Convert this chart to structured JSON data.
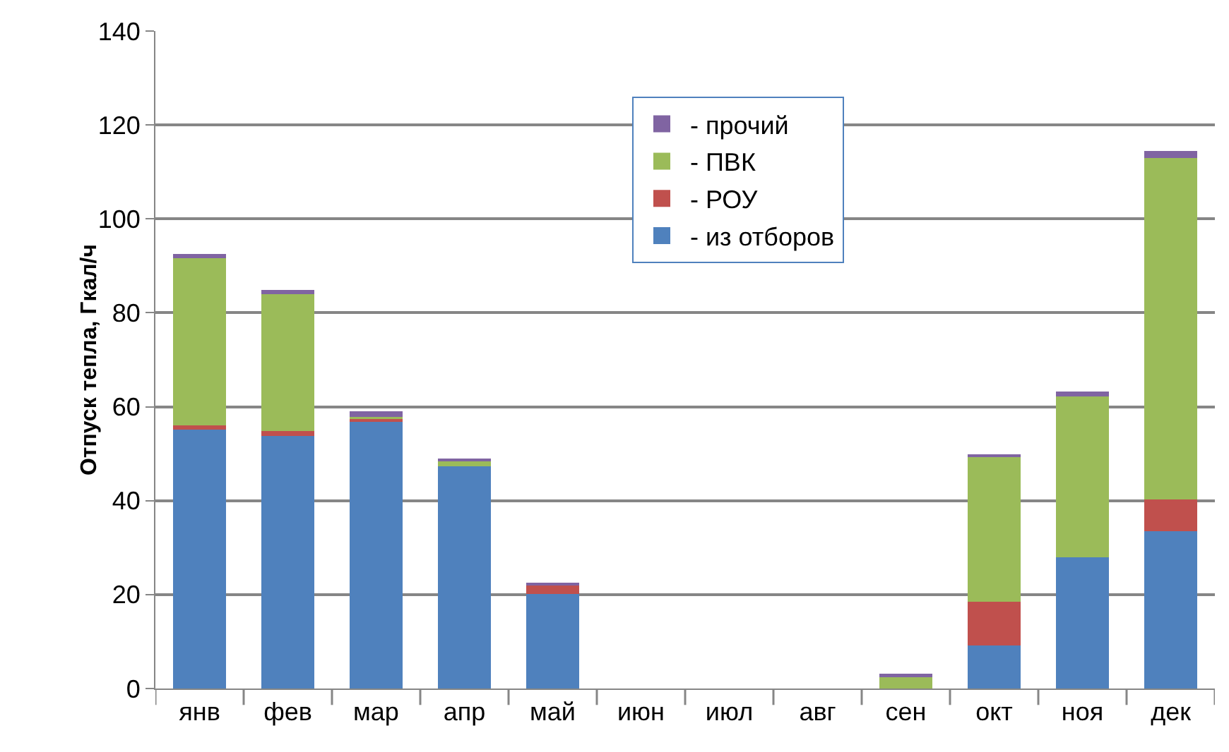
{
  "chart_data": {
    "type": "bar",
    "stacked": true,
    "ylabel": "Отпуск тепла, Гкал/ч",
    "categories": [
      "янв",
      "фев",
      "мар",
      "апр",
      "май",
      "июн",
      "июл",
      "авг",
      "сен",
      "окт",
      "ноя",
      "дек"
    ],
    "series": [
      {
        "name": "- из отборов",
        "color": "#4f81bd",
        "values": [
          55.2,
          53.8,
          56.8,
          47.3,
          20.2,
          0,
          0,
          0,
          0,
          9.1,
          27.9,
          33.5
        ]
      },
      {
        "name": "- РОУ",
        "color": "#c0504d",
        "values": [
          0.8,
          1.0,
          0.6,
          0,
          1.9,
          0,
          0,
          0,
          0,
          9.4,
          0,
          6.7
        ]
      },
      {
        "name": "- ПВК",
        "color": "#9bbb59",
        "values": [
          35.7,
          29.2,
          0.4,
          1.1,
          0,
          0,
          0,
          0,
          2.7,
          30.7,
          34.3,
          72.8
        ]
      },
      {
        "name": "- прочий",
        "color": "#8064a2",
        "values": [
          0.9,
          0.8,
          1.2,
          0.5,
          0.4,
          0,
          0,
          0,
          0.5,
          0.7,
          1.0,
          1.4
        ]
      }
    ],
    "ylim": [
      0,
      140
    ],
    "yticks": [
      0,
      20,
      40,
      60,
      80,
      100,
      120,
      140
    ],
    "grid": "y",
    "legend": "top"
  }
}
